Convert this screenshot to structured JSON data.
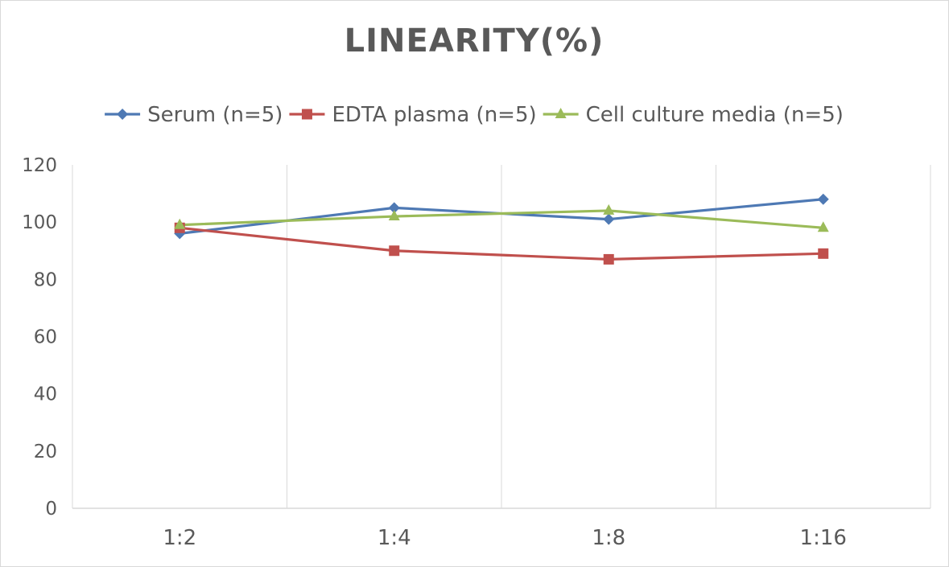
{
  "chart_data": {
    "type": "line",
    "title": "LINEARITY(%)",
    "categories": [
      "1:2",
      "1:4",
      "1:8",
      "1:16"
    ],
    "series": [
      {
        "name": "Serum (n=5)",
        "values": [
          96,
          105,
          101,
          108
        ],
        "color": "#4e79b4",
        "marker": "diamond"
      },
      {
        "name": "EDTA plasma (n=5)",
        "values": [
          98,
          90,
          87,
          89
        ],
        "color": "#c0504d",
        "marker": "square"
      },
      {
        "name": "Cell culture media (n=5)",
        "values": [
          99,
          102,
          104,
          98
        ],
        "color": "#9bbb59",
        "marker": "triangle"
      }
    ],
    "yticks": [
      "0",
      "20",
      "40",
      "60",
      "80",
      "100",
      "120"
    ],
    "ylim": [
      0,
      120
    ],
    "xlabel": "",
    "ylabel": "",
    "grid": "vertical",
    "legend_position": "top"
  }
}
